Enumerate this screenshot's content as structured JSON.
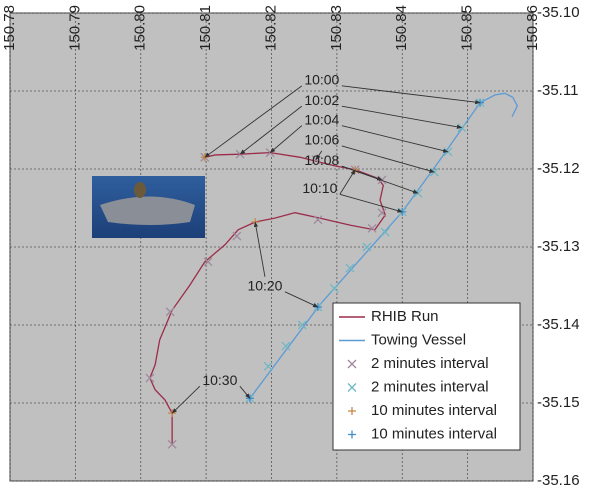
{
  "chart_data": {
    "type": "line",
    "xlim": [
      150.78,
      150.86
    ],
    "xticks": [
      150.78,
      150.79,
      {
        "value": 150.8,
        "label": "150.80"
      },
      150.81,
      150.82,
      150.83,
      150.84,
      150.85,
      150.86
    ],
    "ylim": [
      -35.16,
      -35.1
    ],
    "yticks": [
      {
        "value": -35.1,
        "label": "-35.10"
      },
      -35.11,
      -35.12,
      -35.13,
      -35.14,
      -35.15,
      -35.16
    ],
    "grid": true,
    "legend": "lower right",
    "series": [
      {
        "name": "RHIB Run",
        "color": "#9b2d4a",
        "marker": "none",
        "x": [
          150.8098,
          150.8114,
          150.8152,
          150.8198,
          150.8244,
          150.8268,
          150.8297,
          150.8328,
          150.8363,
          150.8371,
          150.8366,
          150.8374,
          150.8358,
          150.832,
          150.8274,
          150.8236,
          150.8205,
          150.8175,
          150.8149,
          150.8129,
          150.8098,
          150.8075,
          150.8048,
          150.8029,
          150.8022,
          150.8014,
          150.8022,
          150.8037,
          150.8048,
          150.8048
        ],
        "y": [
          -35.1185,
          -35.1182,
          -35.1181,
          -35.1179,
          -35.1185,
          -35.119,
          -35.1196,
          -35.1201,
          -35.1212,
          -35.1221,
          -35.124,
          -35.1259,
          -35.1278,
          -35.1272,
          -35.1263,
          -35.1256,
          -35.1263,
          -35.1268,
          -35.1278,
          -35.1297,
          -35.1319,
          -35.1349,
          -35.1381,
          -35.1419,
          -35.1451,
          -35.1468,
          -35.1483,
          -35.1496,
          -35.1513,
          -35.1554
        ]
      },
      {
        "name": "Towing Vessel",
        "color": "#5b9bd5",
        "marker": "none",
        "x": [
          150.8167,
          150.8274,
          150.84,
          150.8458,
          150.8519,
          150.8542,
          150.8557,
          150.8569,
          150.8576,
          150.8568
        ],
        "y": [
          -35.1494,
          -35.1374,
          -35.1255,
          -35.1188,
          -35.1115,
          -35.1105,
          -35.1103,
          -35.1108,
          -35.1119,
          -35.1133
        ]
      },
      {
        "name": "2 minutes interval",
        "color": "#a0889c",
        "marker": "x",
        "x": [
          150.8098,
          150.8152,
          150.8198,
          150.8268,
          150.8328,
          150.8369,
          150.8369,
          150.8354,
          150.8271,
          150.8147,
          150.8103,
          150.8045,
          150.8014,
          150.8048
        ],
        "y": [
          -35.1185,
          -35.1181,
          -35.1179,
          -35.1188,
          -35.1201,
          -35.1214,
          -35.1256,
          -35.1276,
          -35.1265,
          -35.1286,
          -35.1319,
          -35.1383,
          -35.1468,
          -35.1553
        ]
      },
      {
        "name": "2 minutes interval",
        "color": "#6fb7c4",
        "marker": "x",
        "x": [
          150.8167,
          150.8195,
          150.8222,
          150.8247,
          150.8271,
          150.8296,
          150.832,
          150.8346,
          150.8374,
          150.84,
          150.8424,
          150.8449,
          150.847,
          150.8491,
          150.8519
        ],
        "y": [
          -35.1494,
          -35.1453,
          -35.1427,
          -35.14,
          -35.1377,
          -35.1353,
          -35.1327,
          -35.13,
          -35.1281,
          -35.1255,
          -35.1231,
          -35.1204,
          -35.1178,
          -35.1147,
          -35.1115
        ]
      },
      {
        "name": "10 minutes interval",
        "color": "#c8864a",
        "marker": "+",
        "x": [
          150.8098,
          150.8328,
          150.8175,
          150.8048
        ],
        "y": [
          -35.1185,
          -35.1201,
          -35.1268,
          -35.1513
        ]
      },
      {
        "name": "10 minutes interval",
        "color": "#3f8fd0",
        "marker": "+",
        "x": [
          150.8519,
          150.84,
          150.8271,
          150.8167
        ],
        "y": [
          -35.1115,
          -35.1255,
          -35.1377,
          -35.1494
        ]
      }
    ],
    "annotations": [
      {
        "text": "10:00",
        "x": 150.8277,
        "y": -35.1087,
        "targets": [
          [
            150.8098,
            -35.1185
          ],
          [
            150.8519,
            -35.1115
          ]
        ]
      },
      {
        "text": "10:02",
        "x": 150.8277,
        "y": -35.1113,
        "targets": [
          [
            150.8152,
            -35.1181
          ],
          [
            150.8491,
            -35.1147
          ]
        ]
      },
      {
        "text": "10:04",
        "x": 150.8277,
        "y": -35.1138,
        "targets": [
          [
            150.8198,
            -35.1179
          ],
          [
            150.847,
            -35.1178
          ]
        ]
      },
      {
        "text": "10:06",
        "x": 150.8277,
        "y": -35.1164,
        "targets": [
          [
            150.8268,
            -35.1188
          ],
          [
            150.8449,
            -35.1204
          ]
        ]
      },
      {
        "text": "10:08",
        "x": 150.8277,
        "y": -35.119,
        "targets": [
          [
            150.8369,
            -35.1214
          ],
          [
            150.8424,
            -35.1231
          ]
        ]
      },
      {
        "text": "10:10",
        "x": 150.8274,
        "y": -35.1226,
        "targets": [
          [
            150.8328,
            -35.1201
          ],
          [
            150.84,
            -35.1255
          ]
        ]
      },
      {
        "text": "10:20",
        "x": 150.819,
        "y": -35.1351,
        "targets": [
          [
            150.8175,
            -35.1268
          ],
          [
            150.8271,
            -35.1377
          ]
        ]
      },
      {
        "text": "10:30",
        "x": 150.8121,
        "y": -35.1472,
        "targets": [
          [
            150.8048,
            -35.1513
          ],
          [
            150.8167,
            -35.1494
          ]
        ]
      }
    ]
  }
}
